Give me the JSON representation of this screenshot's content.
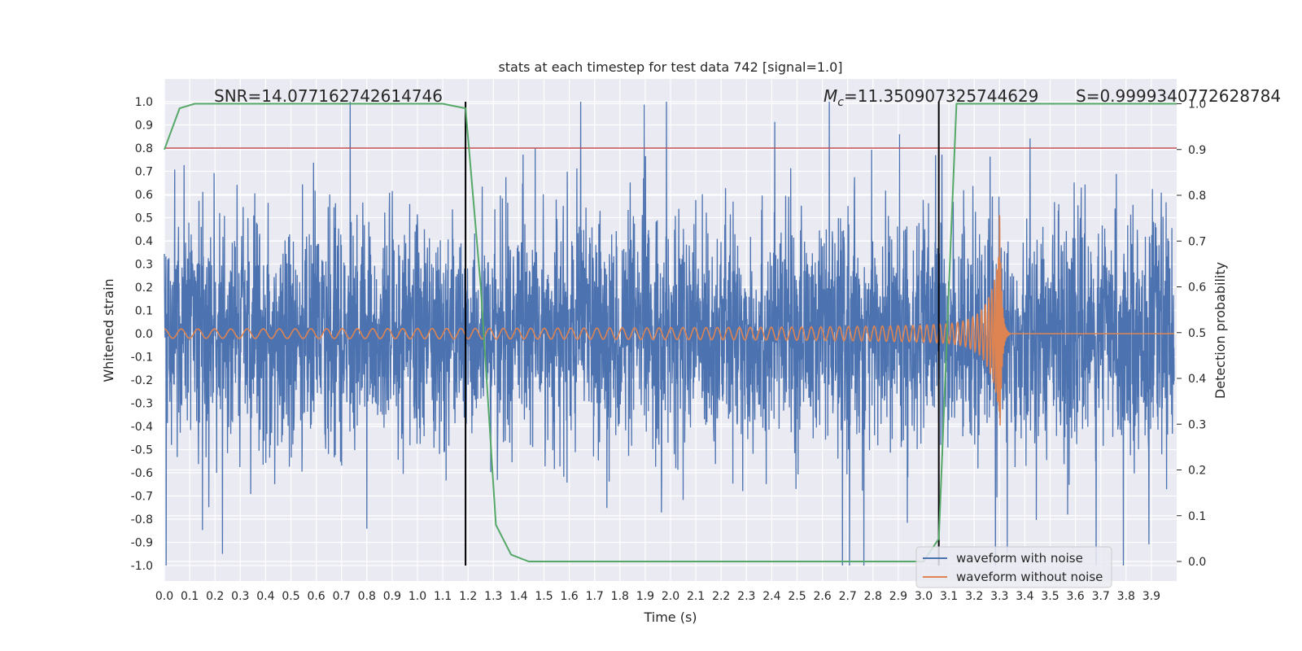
{
  "chart_data": {
    "type": "line",
    "title": "stats at each timestep for test data 742 [signal=1.0]",
    "xlabel": "Time (s)",
    "ylabel": "Whitened strain",
    "ylabel_right": "Detection probability",
    "xlim": [
      0.0,
      4.0
    ],
    "ylim": [
      -1.1,
      1.1
    ],
    "ylim_right": [
      -0.05,
      1.0
    ],
    "x_ticks": [
      "0.0",
      "0.1",
      "0.2",
      "0.3",
      "0.4",
      "0.5",
      "0.6",
      "0.7",
      "0.8",
      "0.9",
      "1.0",
      "1.1",
      "1.2",
      "1.3",
      "1.4",
      "1.5",
      "1.6",
      "1.7",
      "1.8",
      "1.9",
      "2.0",
      "2.1",
      "2.2",
      "2.3",
      "2.4",
      "2.5",
      "2.6",
      "2.7",
      "2.8",
      "2.9",
      "3.0",
      "3.1",
      "3.2",
      "3.3",
      "3.4",
      "3.5",
      "3.6",
      "3.7",
      "3.8",
      "3.9"
    ],
    "y_ticks": [
      "1.0",
      "0.9",
      "0.8",
      "0.7",
      "0.6",
      "0.5",
      "0.4",
      "0.3",
      "0.2",
      "0.1",
      "0.0",
      "-0.1",
      "-0.2",
      "-0.3",
      "-0.4",
      "-0.5",
      "-0.6",
      "-0.7",
      "-0.8",
      "-0.9",
      "-1.0"
    ],
    "y_ticks_right": [
      "1.0",
      "0.9",
      "0.8",
      "0.7",
      "0.6",
      "0.5",
      "0.4",
      "0.3",
      "0.2",
      "0.1",
      "0.0"
    ],
    "threshold": 0.8,
    "vertical_lines": [
      1.19,
      3.06
    ],
    "annotations": {
      "snr": "SNR=14.077162742614746",
      "mc_symbol": "M",
      "mc_sub": "c",
      "mc_value": "=11.350907325744629",
      "s": "S=0.9999340772628784"
    },
    "legend": [
      "waveform with noise",
      "waveform without noise"
    ],
    "legend_position": "bottom-right",
    "series": [
      {
        "name": "waveform with noise",
        "color": "#4c72b0",
        "kind": "noisy strain, amplitude ~ +/-0.5 with spikes to +/-1.0"
      },
      {
        "name": "waveform without noise",
        "color": "#dd8452",
        "kind": "chirp: amplitude 0.02 at t=0 rising to ~0.6 at merger t=3.3, ringdown to 0 by 3.34"
      },
      {
        "name": "detection probability",
        "color": "#55a868",
        "axis": "right",
        "x": [
          0.0,
          0.06,
          0.12,
          0.2,
          0.4,
          0.6,
          0.8,
          1.0,
          1.1,
          1.19,
          1.25,
          1.31,
          1.37,
          1.44,
          1.5,
          1.6,
          2.0,
          2.5,
          3.0,
          3.06,
          3.1,
          3.13,
          3.2,
          3.4,
          3.6,
          3.8,
          4.0
        ],
        "values": [
          0.9,
          0.99,
          1.0,
          1.0,
          1.0,
          1.0,
          1.0,
          1.0,
          1.0,
          0.99,
          0.6,
          0.08,
          0.015,
          0.0,
          0.0,
          0.0,
          0.0,
          0.0,
          0.0,
          0.05,
          0.6,
          1.0,
          1.0,
          1.0,
          1.0,
          1.0,
          1.0
        ]
      }
    ]
  }
}
